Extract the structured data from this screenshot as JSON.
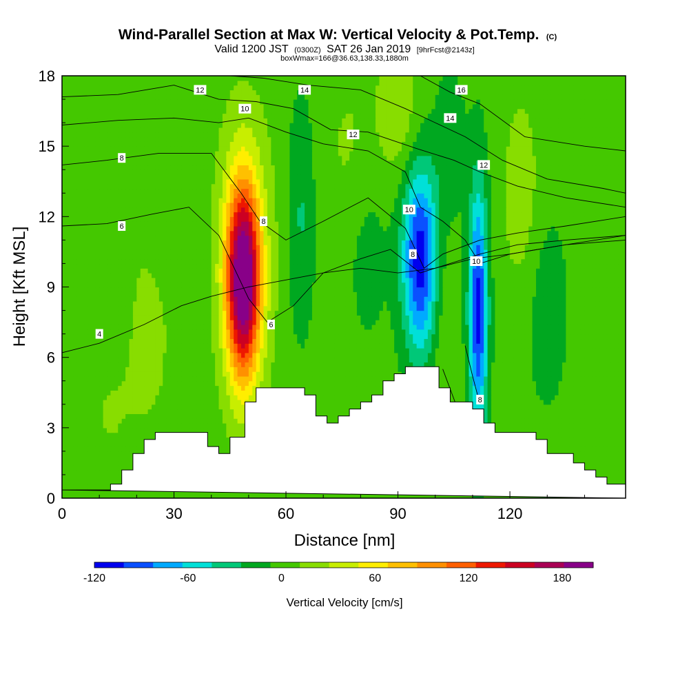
{
  "chart_data": {
    "type": "heatmap",
    "title": "Wind-Parallel Section at Max W: Vertical Velocity & Pot.Temp.",
    "title_mark": "(C)",
    "subtitle": {
      "valid": "Valid 1200 JST",
      "utc": "(0300Z)",
      "date": "SAT 26 Jan 2019",
      "fcst": "[9hrFcst@2143z]",
      "box": "boxWmax=166@36.63,138.33,1880m"
    },
    "xlabel": "Distance [nm]",
    "ylabel": "Height [Kft MSL]",
    "xlim": [
      0,
      151
    ],
    "ylim": [
      0,
      18
    ],
    "x_ticks": [
      0,
      30,
      60,
      90,
      120
    ],
    "y_ticks": [
      0,
      3,
      6,
      9,
      12,
      15,
      18
    ],
    "colorbar": {
      "label": "Vertical Velocity [cm/s]",
      "bounds": [
        -120,
        200
      ],
      "step": 20,
      "tick_values": [
        -120,
        -60,
        0,
        60,
        120,
        180
      ],
      "colors": [
        "#0000ee",
        "#0a50ff",
        "#00aaff",
        "#00e0d8",
        "#00c878",
        "#00a820",
        "#44c800",
        "#88dd00",
        "#c8ee00",
        "#ffee00",
        "#ffc000",
        "#ff9000",
        "#ff6000",
        "#ee1800",
        "#cc0022",
        "#aa0055",
        "#880088"
      ]
    },
    "velocity_features": [
      {
        "x": 48.5,
        "y": 9.3,
        "sx": 3.2,
        "sy": 2.9,
        "w": 205
      },
      {
        "x": 49,
        "y": 10.5,
        "sx": 5.5,
        "sy": 4.5,
        "w": 35
      },
      {
        "x": 96,
        "y": 10.2,
        "sx": 3.4,
        "sy": 2.8,
        "w": -120
      },
      {
        "x": 111.5,
        "y": 8.0,
        "sx": 1.8,
        "sy": 3.8,
        "w": -115
      },
      {
        "x": 64,
        "y": 12.0,
        "sx": 2.5,
        "sy": 3.5,
        "w": -30
      },
      {
        "x": 82,
        "y": 10.5,
        "sx": 4.0,
        "sy": 3.0,
        "w": -15
      },
      {
        "x": 104,
        "y": 15.0,
        "sx": 3.0,
        "sy": 2.5,
        "w": -20
      },
      {
        "x": 130,
        "y": 8.0,
        "sx": 4.0,
        "sy": 3.0,
        "w": -20
      },
      {
        "x": 90,
        "y": 16.5,
        "sx": 4.0,
        "sy": 2.0,
        "w": 30
      },
      {
        "x": 77,
        "y": 15.0,
        "sx": 5.0,
        "sy": 2.5,
        "w": 15
      },
      {
        "x": 123,
        "y": 13.0,
        "sx": 3.5,
        "sy": 3.0,
        "w": 25
      },
      {
        "x": 24,
        "y": 8.0,
        "sx": 5.0,
        "sy": 4.0,
        "w": 18
      },
      {
        "x": 102,
        "y": 8.0,
        "sx": 2.5,
        "sy": 3.5,
        "w": 15
      },
      {
        "x": 27,
        "y": 13.0,
        "sx": 4.0,
        "sy": 3.0,
        "w": -12
      },
      {
        "x": 12,
        "y": 3.5,
        "sx": 6.0,
        "sy": 2.5,
        "w": 12
      }
    ],
    "terrain": [
      [
        0,
        0.35
      ],
      [
        13,
        0.35
      ],
      [
        13,
        0.6
      ],
      [
        16,
        0.6
      ],
      [
        16,
        1.2
      ],
      [
        19,
        1.2
      ],
      [
        19,
        1.9
      ],
      [
        22,
        1.9
      ],
      [
        22,
        2.5
      ],
      [
        25,
        2.5
      ],
      [
        25,
        2.8
      ],
      [
        39,
        2.8
      ],
      [
        39,
        2.2
      ],
      [
        42,
        2.2
      ],
      [
        42,
        1.9
      ],
      [
        45,
        1.9
      ],
      [
        45,
        2.6
      ],
      [
        49,
        2.6
      ],
      [
        49,
        4.1
      ],
      [
        52,
        4.1
      ],
      [
        52,
        4.7
      ],
      [
        65,
        4.7
      ],
      [
        65,
        4.4
      ],
      [
        68,
        4.4
      ],
      [
        68,
        3.5
      ],
      [
        71,
        3.5
      ],
      [
        71,
        3.2
      ],
      [
        74,
        3.2
      ],
      [
        74,
        3.5
      ],
      [
        77,
        3.5
      ],
      [
        77,
        3.8
      ],
      [
        80,
        3.8
      ],
      [
        80,
        4.1
      ],
      [
        83,
        4.1
      ],
      [
        83,
        4.4
      ],
      [
        86,
        4.4
      ],
      [
        86,
        5.0
      ],
      [
        89,
        5.0
      ],
      [
        89,
        5.3
      ],
      [
        92,
        5.3
      ],
      [
        92,
        5.6
      ],
      [
        101,
        5.6
      ],
      [
        101,
        4.7
      ],
      [
        104,
        4.7
      ],
      [
        104,
        4.1
      ],
      [
        110,
        4.1
      ],
      [
        110,
        3.8
      ],
      [
        113,
        3.8
      ],
      [
        113,
        3.2
      ],
      [
        116,
        3.2
      ],
      [
        116,
        2.8
      ],
      [
        127,
        2.8
      ],
      [
        127,
        2.5
      ],
      [
        130,
        2.5
      ],
      [
        130,
        1.9
      ],
      [
        137,
        1.9
      ],
      [
        137,
        1.5
      ],
      [
        140,
        1.5
      ],
      [
        140,
        1.2
      ],
      [
        143,
        1.2
      ],
      [
        143,
        0.9
      ],
      [
        146,
        0.9
      ],
      [
        146,
        0.6
      ],
      [
        151,
        0.6
      ],
      [
        151,
        0
      ]
    ],
    "theta_contours": [
      {
        "theta": 4,
        "points": [
          [
            0,
            6.2
          ],
          [
            10,
            6.6
          ],
          [
            22,
            7.4
          ],
          [
            32,
            8.2
          ],
          [
            40,
            8.6
          ],
          [
            50,
            9.0
          ],
          [
            60,
            9.3
          ],
          [
            70,
            9.6
          ],
          [
            80,
            9.8
          ],
          [
            90,
            9.6
          ],
          [
            100,
            9.8
          ],
          [
            110,
            10.2
          ],
          [
            120,
            10.4
          ],
          [
            135,
            10.8
          ],
          [
            151,
            11.0
          ]
        ]
      },
      {
        "theta": 6,
        "points": [
          [
            0,
            11.6
          ],
          [
            12,
            11.7
          ],
          [
            24,
            12.1
          ],
          [
            34,
            12.4
          ],
          [
            42,
            11.2
          ],
          [
            50,
            8.5
          ],
          [
            55,
            7.5
          ],
          [
            62,
            8.2
          ],
          [
            70,
            9.6
          ],
          [
            80,
            10.2
          ],
          [
            88,
            10.6
          ],
          [
            96,
            9.6
          ],
          [
            104,
            10.0
          ],
          [
            112,
            10.4
          ],
          [
            122,
            10.8
          ],
          [
            135,
            11.0
          ],
          [
            151,
            11.2
          ]
        ]
      },
      {
        "theta": 8,
        "points": [
          [
            0,
            14.2
          ],
          [
            12,
            14.4
          ],
          [
            26,
            14.7
          ],
          [
            40,
            14.7
          ],
          [
            48,
            13.0
          ],
          [
            53,
            11.8
          ],
          [
            60,
            11.0
          ],
          [
            70,
            11.8
          ],
          [
            82,
            12.8
          ],
          [
            92,
            11.5
          ],
          [
            97,
            9.8
          ],
          [
            102,
            10.4
          ],
          [
            112,
            11.0
          ],
          [
            122,
            11.3
          ],
          [
            135,
            11.6
          ],
          [
            151,
            12.0
          ]
        ]
      },
      {
        "theta": 10,
        "points": [
          [
            0,
            15.9
          ],
          [
            15,
            16.1
          ],
          [
            30,
            16.2
          ],
          [
            42,
            16.0
          ],
          [
            50,
            16.2
          ],
          [
            60,
            15.6
          ],
          [
            70,
            15.1
          ],
          [
            82,
            14.8
          ],
          [
            92,
            13.9
          ],
          [
            96,
            12.4
          ],
          [
            102,
            11.8
          ],
          [
            108,
            11.0
          ],
          [
            112,
            10.0
          ],
          [
            120,
            10.4
          ],
          [
            135,
            10.8
          ],
          [
            151,
            11.2
          ]
        ]
      },
      {
        "theta": 12,
        "points": [
          [
            0,
            17.1
          ],
          [
            15,
            17.2
          ],
          [
            30,
            17.6
          ],
          [
            42,
            17.0
          ],
          [
            52,
            16.9
          ],
          [
            62,
            16.6
          ],
          [
            72,
            15.7
          ],
          [
            82,
            15.6
          ],
          [
            95,
            14.9
          ],
          [
            105,
            14.4
          ],
          [
            112,
            13.9
          ],
          [
            122,
            13.3
          ],
          [
            135,
            12.8
          ],
          [
            151,
            12.4
          ]
        ]
      },
      {
        "theta": 14,
        "points": [
          [
            45,
            18.0
          ],
          [
            54,
            17.9
          ],
          [
            66,
            17.6
          ],
          [
            80,
            17.4
          ],
          [
            92,
            16.6
          ],
          [
            100,
            16.0
          ],
          [
            108,
            15.4
          ],
          [
            118,
            14.4
          ],
          [
            130,
            13.6
          ],
          [
            145,
            13.2
          ],
          [
            151,
            13.0
          ]
        ]
      },
      {
        "theta": 16,
        "points": [
          [
            96,
            18.0
          ],
          [
            104,
            17.3
          ],
          [
            112,
            16.8
          ],
          [
            124,
            15.4
          ],
          [
            140,
            15.0
          ],
          [
            151,
            14.8
          ]
        ]
      },
      {
        "theta": 8,
        "points": [
          [
            108,
            6.5
          ],
          [
            110,
            5.2
          ],
          [
            112,
            4.0
          ]
        ]
      },
      {
        "theta": 10,
        "points": [
          [
            102,
            5.5
          ],
          [
            106,
            3.8
          ],
          [
            108,
            3.0
          ]
        ]
      }
    ],
    "contour_labels": [
      {
        "text": "12",
        "x": 37,
        "y": 17.4
      },
      {
        "text": "14",
        "x": 65,
        "y": 17.4
      },
      {
        "text": "16",
        "x": 107,
        "y": 17.4
      },
      {
        "text": "10",
        "x": 49,
        "y": 16.6
      },
      {
        "text": "14",
        "x": 104,
        "y": 16.2
      },
      {
        "text": "12",
        "x": 78,
        "y": 15.5
      },
      {
        "text": "12",
        "x": 113,
        "y": 14.2
      },
      {
        "text": "8",
        "x": 16,
        "y": 14.5
      },
      {
        "text": "10",
        "x": 93,
        "y": 12.3
      },
      {
        "text": "8",
        "x": 54,
        "y": 11.8
      },
      {
        "text": "6",
        "x": 16,
        "y": 11.6
      },
      {
        "text": "8",
        "x": 94,
        "y": 10.4
      },
      {
        "text": "10",
        "x": 111,
        "y": 10.1
      },
      {
        "text": "6",
        "x": 56,
        "y": 7.4
      },
      {
        "text": "4",
        "x": 10,
        "y": 7.0
      },
      {
        "text": "8",
        "x": 112,
        "y": 4.2
      }
    ]
  }
}
